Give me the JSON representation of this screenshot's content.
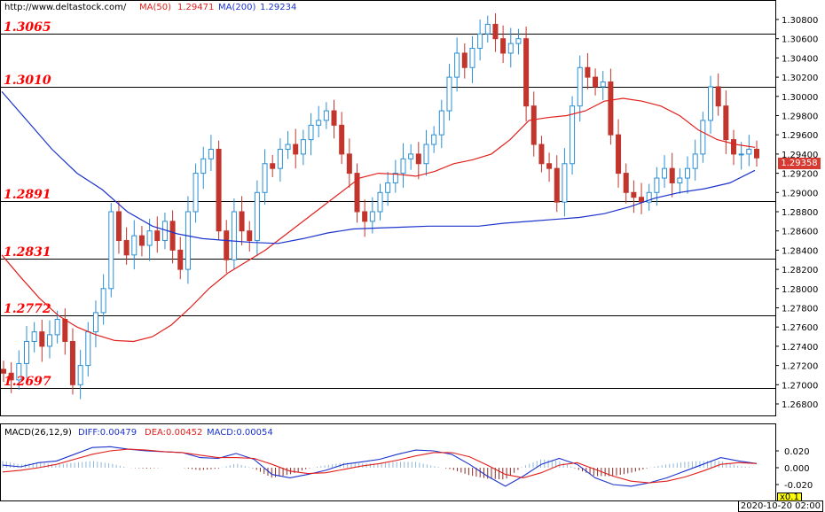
{
  "header": {
    "url": "http://www.deltastock.com/",
    "ma50_label": "MA(50)",
    "ma50_value": "1.29471",
    "ma200_label": "MA(200)",
    "ma200_value": "1.29234"
  },
  "macd_header": {
    "title": "MACD(26,12,9)",
    "diff": "DIFF:0.00479",
    "dea": "DEA:0.00452",
    "macd": "MACD:0.00054"
  },
  "colors": {
    "up": "#2a8fd6",
    "down": "#c2352c",
    "ma50": "#e0201c",
    "ma200": "#1c33cc",
    "level_text": "#ff0000",
    "price_tag": "#d63a31"
  },
  "current_price": "1.29358",
  "date_label": "2020-10-20 02:00",
  "macd_scale_tag": "x0.1",
  "levels": [
    {
      "price": 1.3065,
      "label": "1.3065"
    },
    {
      "price": 1.301,
      "label": "1.3010"
    },
    {
      "price": 1.2891,
      "label": "1.2891"
    },
    {
      "price": 1.2831,
      "label": "1.2831"
    },
    {
      "price": 1.2772,
      "label": "1.2772"
    },
    {
      "price": 1.2697,
      "label": "1.2697"
    }
  ],
  "chart_data": {
    "type": "line",
    "title": "",
    "xlabel": "",
    "ylabel": "",
    "ylim": [
      1.2665,
      1.3095
    ],
    "y_ticks": [
      "1.30800",
      "1.30600",
      "1.30400",
      "1.30200",
      "1.30000",
      "1.29800",
      "1.29600",
      "1.29400",
      "1.29200",
      "1.29000",
      "1.28800",
      "1.28600",
      "1.28400",
      "1.28200",
      "1.28000",
      "1.27800",
      "1.27600",
      "1.27400",
      "1.27200",
      "1.27000",
      "1.26800"
    ],
    "candle_closes": [
      1.2712,
      1.2705,
      1.2722,
      1.2745,
      1.2755,
      1.274,
      1.2752,
      1.2768,
      1.2745,
      1.27,
      1.272,
      1.2755,
      1.2775,
      1.28,
      1.288,
      1.285,
      1.2835,
      1.2855,
      1.2845,
      1.286,
      1.285,
      1.287,
      1.284,
      1.282,
      1.288,
      1.292,
      1.2935,
      1.2945,
      1.286,
      1.283,
      1.288,
      1.286,
      1.285,
      1.29,
      1.293,
      1.2925,
      1.2945,
      1.295,
      1.294,
      1.2955,
      1.297,
      1.2975,
      1.2985,
      1.297,
      1.294,
      1.292,
      1.288,
      1.287,
      1.288,
      1.29,
      1.291,
      1.292,
      1.2935,
      1.294,
      1.293,
      1.295,
      1.296,
      1.2985,
      1.302,
      1.3045,
      1.303,
      1.305,
      1.3065,
      1.3075,
      1.306,
      1.3045,
      1.3055,
      1.306,
      1.299,
      1.295,
      1.293,
      1.2925,
      1.289,
      1.293,
      1.299,
      1.303,
      1.302,
      1.301,
      1.3015,
      1.296,
      1.292,
      1.29,
      1.2895,
      1.289,
      1.29,
      1.2915,
      1.2925,
      1.291,
      1.2915,
      1.2925,
      1.294,
      1.2975,
      1.301,
      1.299,
      1.2955,
      1.294,
      1.294,
      1.2945,
      1.2936
    ],
    "series": [
      {
        "name": "MA(50)",
        "values": [
          1.2835,
          1.2812,
          1.279,
          1.2772,
          1.276,
          1.2752,
          1.2746,
          1.2745,
          1.275,
          1.2762,
          1.278,
          1.28,
          1.2816,
          1.2828,
          1.284,
          1.2855,
          1.287,
          1.2885,
          1.29,
          1.2915,
          1.292,
          1.2919,
          1.2917,
          1.2922,
          1.293,
          1.2934,
          1.294,
          1.2955,
          1.2975,
          1.2978,
          1.298,
          1.2985,
          1.2995,
          1.2998,
          1.2995,
          1.299,
          1.298,
          1.2965,
          1.2955,
          1.295,
          1.2947
        ]
      },
      {
        "name": "MA(200)",
        "values": [
          1.3005,
          1.2975,
          1.2945,
          1.292,
          1.2903,
          1.288,
          1.2865,
          1.2857,
          1.2852,
          1.285,
          1.2848,
          1.2847,
          1.2852,
          1.2858,
          1.2862,
          1.2863,
          1.2864,
          1.2865,
          1.2865,
          1.2865,
          1.2868,
          1.287,
          1.2872,
          1.2874,
          1.2878,
          1.2885,
          1.2894,
          1.29,
          1.2904,
          1.291,
          1.2923
        ]
      }
    ],
    "macd": {
      "y_ticks": [
        "0.020",
        "0.000",
        "-0.020"
      ],
      "diff": [
        0.003,
        0.001,
        0.006,
        0.008,
        0.016,
        0.024,
        0.025,
        0.022,
        0.02,
        0.019,
        0.018,
        0.012,
        0.011,
        0.017,
        0.01,
        -0.008,
        -0.012,
        -0.008,
        -0.003,
        0.004,
        0.007,
        0.01,
        0.016,
        0.021,
        0.02,
        0.016,
        0.004,
        -0.01,
        -0.022,
        -0.01,
        0.004,
        0.011,
        0.004,
        -0.012,
        -0.02,
        -0.022,
        -0.018,
        -0.012,
        -0.004,
        0.004,
        0.012,
        0.008,
        0.005
      ],
      "dea": [
        -0.005,
        -0.003,
        0.0,
        0.004,
        0.01,
        0.016,
        0.02,
        0.022,
        0.021,
        0.019,
        0.018,
        0.015,
        0.012,
        0.012,
        0.011,
        0.004,
        -0.004,
        -0.007,
        -0.006,
        -0.002,
        0.002,
        0.005,
        0.009,
        0.014,
        0.018,
        0.018,
        0.013,
        0.003,
        -0.008,
        -0.012,
        -0.006,
        0.003,
        0.006,
        -0.002,
        -0.01,
        -0.016,
        -0.018,
        -0.016,
        -0.011,
        -0.004,
        0.004,
        0.006,
        0.005
      ],
      "hist": [
        0.008,
        0.004,
        0.006,
        0.004,
        0.006,
        0.008,
        0.005,
        0.0,
        -0.001,
        0.0,
        0.0,
        -0.003,
        -0.001,
        0.005,
        -0.001,
        -0.012,
        -0.008,
        -0.001,
        0.003,
        0.006,
        0.005,
        0.005,
        0.007,
        0.007,
        0.002,
        -0.002,
        -0.009,
        -0.013,
        -0.014,
        0.002,
        0.01,
        0.008,
        -0.002,
        -0.01,
        -0.01,
        -0.006,
        0.0,
        0.004,
        0.007,
        0.008,
        0.008,
        0.002,
        0.0
      ]
    }
  }
}
